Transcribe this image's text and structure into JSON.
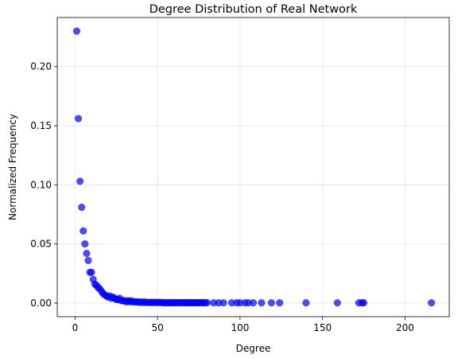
{
  "chart_data": {
    "type": "scatter",
    "title": "Degree Distribution of Real Network",
    "xlabel": "Degree",
    "ylabel": "Normalized Frequency",
    "xlim": [
      -10.8,
      226.8
    ],
    "ylim": [
      -0.0115,
      0.2415
    ],
    "xticks": [
      0,
      50,
      100,
      150,
      200
    ],
    "xtick_labels": [
      "0",
      "50",
      "100",
      "150",
      "200"
    ],
    "yticks": [
      0.0,
      0.05,
      0.1,
      0.15,
      0.2
    ],
    "ytick_labels": [
      "0.00",
      "0.05",
      "0.10",
      "0.15",
      "0.20"
    ],
    "grid": true,
    "marker_color": "#0000ff",
    "marker_alpha": 0.7,
    "points": [
      [
        1,
        0.23
      ],
      [
        2,
        0.156
      ],
      [
        3,
        0.103
      ],
      [
        4,
        0.081
      ],
      [
        5,
        0.061
      ],
      [
        6,
        0.05
      ],
      [
        7,
        0.042
      ],
      [
        8,
        0.036
      ],
      [
        9,
        0.026
      ],
      [
        10,
        0.026
      ],
      [
        11,
        0.02
      ],
      [
        12,
        0.016
      ],
      [
        13,
        0.015
      ],
      [
        14,
        0.013
      ],
      [
        15,
        0.012
      ],
      [
        16,
        0.01
      ],
      [
        17,
        0.008
      ],
      [
        18,
        0.007
      ],
      [
        19,
        0.006
      ],
      [
        20,
        0.005
      ],
      [
        21,
        0.006
      ],
      [
        22,
        0.004
      ],
      [
        23,
        0.005
      ],
      [
        24,
        0.004
      ],
      [
        25,
        0.003
      ],
      [
        26,
        0.003
      ],
      [
        27,
        0.004
      ],
      [
        28,
        0.002
      ],
      [
        29,
        0.002
      ],
      [
        30,
        0.002
      ],
      [
        31,
        0.001
      ],
      [
        32,
        0.002
      ],
      [
        33,
        0.001
      ],
      [
        34,
        0.002
      ],
      [
        35,
        0.001
      ],
      [
        36,
        0.001
      ],
      [
        37,
        0.001
      ],
      [
        38,
        0.001
      ],
      [
        39,
        0.0005
      ],
      [
        40,
        0.001
      ],
      [
        41,
        0.0005
      ],
      [
        42,
        0.001
      ],
      [
        43,
        0.0005
      ],
      [
        44,
        0.0005
      ],
      [
        45,
        0.0005
      ],
      [
        46,
        0.0005
      ],
      [
        47,
        0.0005
      ],
      [
        48,
        0.0005
      ],
      [
        49,
        0.0005
      ],
      [
        50,
        0.0005
      ],
      [
        51,
        0.0005
      ],
      [
        52,
        0.0005
      ],
      [
        53,
        0.0003
      ],
      [
        54,
        0.0003
      ],
      [
        55,
        0.0003
      ],
      [
        56,
        0.0003
      ],
      [
        57,
        0.0003
      ],
      [
        58,
        0.0003
      ],
      [
        59,
        0.0003
      ],
      [
        60,
        0.0003
      ],
      [
        61,
        0.0003
      ],
      [
        62,
        0.0003
      ],
      [
        63,
        0.0003
      ],
      [
        64,
        0.0003
      ],
      [
        65,
        0.0003
      ],
      [
        66,
        0.0003
      ],
      [
        67,
        0.0003
      ],
      [
        68,
        0.0003
      ],
      [
        69,
        0.0003
      ],
      [
        70,
        0.0003
      ],
      [
        71,
        0.0003
      ],
      [
        72,
        0.0003
      ],
      [
        73,
        0.0003
      ],
      [
        74,
        0.0003
      ],
      [
        75,
        0.0003
      ],
      [
        76,
        0.0003
      ],
      [
        77,
        0.0003
      ],
      [
        78,
        0.0003
      ],
      [
        79,
        0.0003
      ],
      [
        80,
        0.0003
      ],
      [
        84,
        0.0002
      ],
      [
        87,
        0.0002
      ],
      [
        90,
        0.0002
      ],
      [
        95,
        0.0002
      ],
      [
        98,
        0.0002
      ],
      [
        100,
        0.0002
      ],
      [
        103,
        0.0002
      ],
      [
        105,
        0.0002
      ],
      [
        108,
        0.0002
      ],
      [
        113,
        0.0002
      ],
      [
        119,
        0.0002
      ],
      [
        124,
        0.0002
      ],
      [
        140,
        0.0002
      ],
      [
        159,
        0.0002
      ],
      [
        172,
        0.0002
      ],
      [
        174,
        0.0002
      ],
      [
        175,
        0.0002
      ],
      [
        216,
        0.0002
      ]
    ]
  }
}
